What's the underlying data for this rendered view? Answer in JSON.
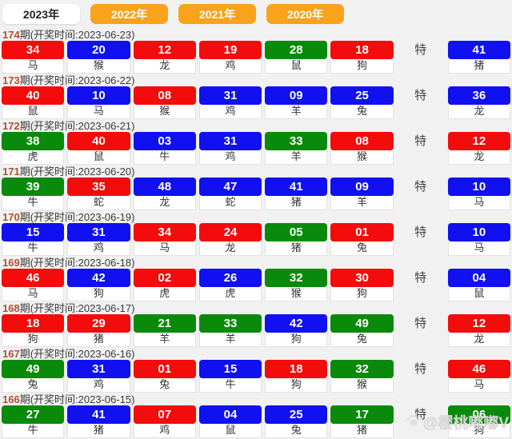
{
  "tabs": [
    {
      "label": "2023年",
      "active": true
    },
    {
      "label": "2022年",
      "active": false
    },
    {
      "label": "2021年",
      "active": false
    },
    {
      "label": "2020年",
      "active": false
    }
  ],
  "colors": {
    "red": "#f40b0b",
    "blue": "#1010f0",
    "green": "#0a8a0a",
    "tab_orange": "#f9a21c",
    "period_text": "#b3502e"
  },
  "special_label": "特",
  "rows": [
    {
      "period": "174",
      "info": "期(开奖时间:2023-06-23)",
      "balls": [
        {
          "num": "34",
          "color": "red",
          "zodiac": "马"
        },
        {
          "num": "20",
          "color": "blue",
          "zodiac": "猴"
        },
        {
          "num": "12",
          "color": "red",
          "zodiac": "龙"
        },
        {
          "num": "19",
          "color": "red",
          "zodiac": "鸡"
        },
        {
          "num": "28",
          "color": "green",
          "zodiac": "鼠"
        },
        {
          "num": "18",
          "color": "red",
          "zodiac": "狗"
        }
      ],
      "special": {
        "num": "41",
        "color": "blue",
        "zodiac": "猪"
      }
    },
    {
      "period": "173",
      "info": "期(开奖时间:2023-06-22)",
      "balls": [
        {
          "num": "40",
          "color": "red",
          "zodiac": "鼠"
        },
        {
          "num": "10",
          "color": "blue",
          "zodiac": "马"
        },
        {
          "num": "08",
          "color": "red",
          "zodiac": "猴"
        },
        {
          "num": "31",
          "color": "blue",
          "zodiac": "鸡"
        },
        {
          "num": "09",
          "color": "blue",
          "zodiac": "羊"
        },
        {
          "num": "25",
          "color": "blue",
          "zodiac": "兔"
        }
      ],
      "special": {
        "num": "36",
        "color": "blue",
        "zodiac": "龙"
      }
    },
    {
      "period": "172",
      "info": "期(开奖时间:2023-06-21)",
      "balls": [
        {
          "num": "38",
          "color": "green",
          "zodiac": "虎"
        },
        {
          "num": "40",
          "color": "red",
          "zodiac": "鼠"
        },
        {
          "num": "03",
          "color": "blue",
          "zodiac": "牛"
        },
        {
          "num": "31",
          "color": "blue",
          "zodiac": "鸡"
        },
        {
          "num": "33",
          "color": "green",
          "zodiac": "羊"
        },
        {
          "num": "08",
          "color": "red",
          "zodiac": "猴"
        }
      ],
      "special": {
        "num": "12",
        "color": "red",
        "zodiac": "龙"
      }
    },
    {
      "period": "171",
      "info": "期(开奖时间:2023-06-20)",
      "balls": [
        {
          "num": "39",
          "color": "green",
          "zodiac": "牛"
        },
        {
          "num": "35",
          "color": "red",
          "zodiac": "蛇"
        },
        {
          "num": "48",
          "color": "blue",
          "zodiac": "龙"
        },
        {
          "num": "47",
          "color": "blue",
          "zodiac": "蛇"
        },
        {
          "num": "41",
          "color": "blue",
          "zodiac": "猪"
        },
        {
          "num": "09",
          "color": "blue",
          "zodiac": "羊"
        }
      ],
      "special": {
        "num": "10",
        "color": "blue",
        "zodiac": "马"
      }
    },
    {
      "period": "170",
      "info": "期(开奖时间:2023-06-19)",
      "balls": [
        {
          "num": "15",
          "color": "blue",
          "zodiac": "牛"
        },
        {
          "num": "31",
          "color": "blue",
          "zodiac": "鸡"
        },
        {
          "num": "34",
          "color": "red",
          "zodiac": "马"
        },
        {
          "num": "24",
          "color": "red",
          "zodiac": "龙"
        },
        {
          "num": "05",
          "color": "green",
          "zodiac": "猪"
        },
        {
          "num": "01",
          "color": "red",
          "zodiac": "兔"
        }
      ],
      "special": {
        "num": "10",
        "color": "blue",
        "zodiac": "马"
      }
    },
    {
      "period": "169",
      "info": "期(开奖时间:2023-06-18)",
      "balls": [
        {
          "num": "46",
          "color": "red",
          "zodiac": "马"
        },
        {
          "num": "42",
          "color": "blue",
          "zodiac": "狗"
        },
        {
          "num": "02",
          "color": "red",
          "zodiac": "虎"
        },
        {
          "num": "26",
          "color": "blue",
          "zodiac": "虎"
        },
        {
          "num": "32",
          "color": "green",
          "zodiac": "猴"
        },
        {
          "num": "30",
          "color": "red",
          "zodiac": "狗"
        }
      ],
      "special": {
        "num": "04",
        "color": "blue",
        "zodiac": "鼠"
      }
    },
    {
      "period": "168",
      "info": "期(开奖时间:2023-06-17)",
      "balls": [
        {
          "num": "18",
          "color": "red",
          "zodiac": "狗"
        },
        {
          "num": "29",
          "color": "red",
          "zodiac": "猪"
        },
        {
          "num": "21",
          "color": "green",
          "zodiac": "羊"
        },
        {
          "num": "33",
          "color": "green",
          "zodiac": "羊"
        },
        {
          "num": "42",
          "color": "blue",
          "zodiac": "狗"
        },
        {
          "num": "49",
          "color": "green",
          "zodiac": "兔"
        }
      ],
      "special": {
        "num": "12",
        "color": "red",
        "zodiac": "龙"
      }
    },
    {
      "period": "167",
      "info": "期(开奖时间:2023-06-16)",
      "balls": [
        {
          "num": "49",
          "color": "green",
          "zodiac": "兔"
        },
        {
          "num": "31",
          "color": "blue",
          "zodiac": "鸡"
        },
        {
          "num": "01",
          "color": "red",
          "zodiac": "兔"
        },
        {
          "num": "15",
          "color": "blue",
          "zodiac": "牛"
        },
        {
          "num": "18",
          "color": "red",
          "zodiac": "狗"
        },
        {
          "num": "32",
          "color": "green",
          "zodiac": "猴"
        }
      ],
      "special": {
        "num": "46",
        "color": "red",
        "zodiac": "马"
      }
    },
    {
      "period": "166",
      "info": "期(开奖时间:2023-06-15)",
      "balls": [
        {
          "num": "27",
          "color": "green",
          "zodiac": "牛"
        },
        {
          "num": "41",
          "color": "blue",
          "zodiac": "猪"
        },
        {
          "num": "07",
          "color": "red",
          "zodiac": "鸡"
        },
        {
          "num": "04",
          "color": "blue",
          "zodiac": "鼠"
        },
        {
          "num": "25",
          "color": "blue",
          "zodiac": "兔"
        },
        {
          "num": "17",
          "color": "green",
          "zodiac": "猪"
        }
      ],
      "special": {
        "num": "06",
        "color": "green",
        "zodiac": "狗"
      }
    }
  ],
  "watermark": {
    "icon": "paw-icon",
    "text": "@樱桃嘟嘟V"
  }
}
